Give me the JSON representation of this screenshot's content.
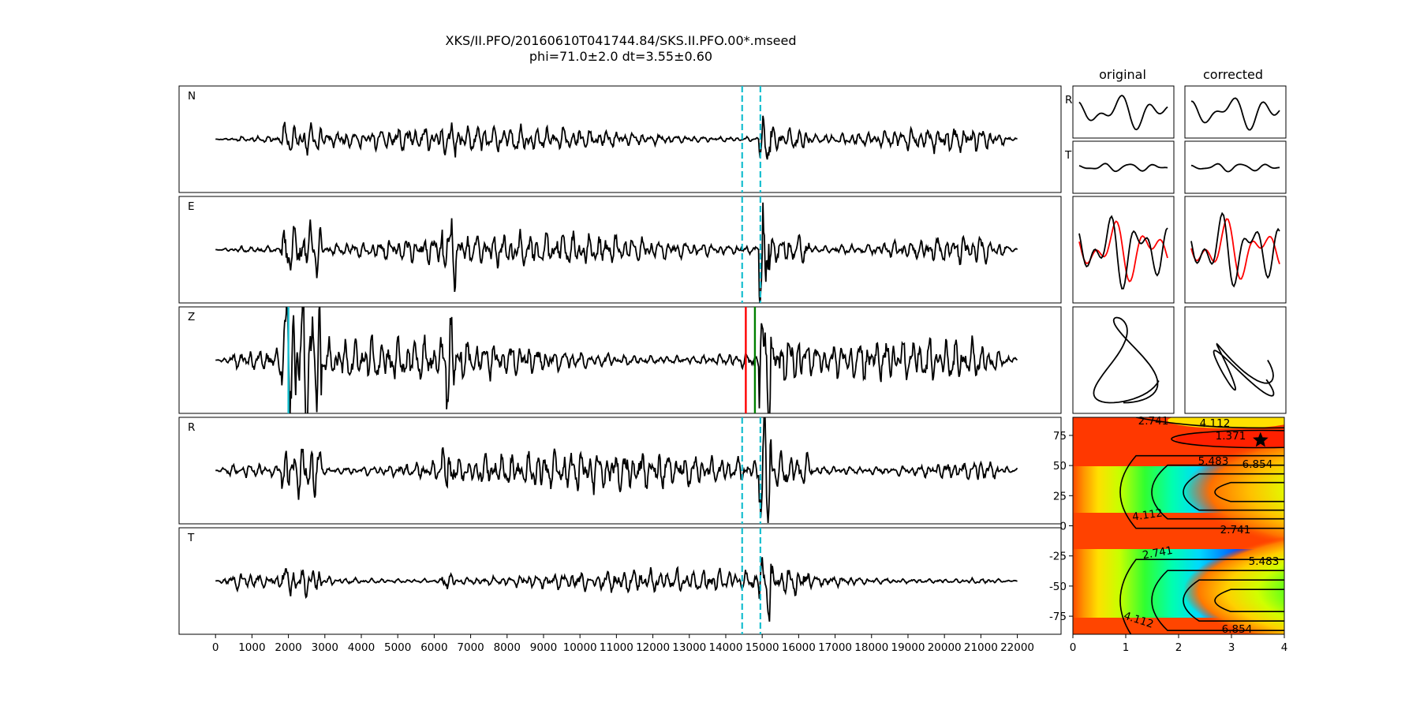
{
  "title": {
    "line1": "XKS/II.PFO/20160610T041744.84/SKS.II.PFO.00*.mseed",
    "line2": "phi=71.0±2.0 dt=3.55±0.60"
  },
  "colors": {
    "trace": "#000000",
    "window_marker": "#17becf",
    "pick_red": "#ff0000",
    "pick_green": "#008000",
    "pick_cyan": "#17becf",
    "particle_red": "#ff0000"
  },
  "chart_data": [
    {
      "type": "line",
      "name": "seismogram-panels",
      "channels": [
        "N",
        "E",
        "Z",
        "R",
        "T"
      ],
      "xlim": [
        -1000,
        23200
      ],
      "x_ticks": [
        0,
        1000,
        2000,
        3000,
        4000,
        5000,
        6000,
        7000,
        8000,
        9000,
        10000,
        11000,
        12000,
        13000,
        14000,
        15000,
        16000,
        17000,
        18000,
        19000,
        20000,
        21000,
        22000
      ],
      "x_ticklabels": [
        "0",
        "1000",
        "2000",
        "3000",
        "4000",
        "5000",
        "6000",
        "7000",
        "8000",
        "9000",
        "10000",
        "11000",
        "12000",
        "13000",
        "14000",
        "15000",
        "16000",
        "17000",
        "18000",
        "19000",
        "20000",
        "21000",
        "22000"
      ],
      "trace_x_range": [
        0,
        22000
      ],
      "window": {
        "start": 14450,
        "end": 14950,
        "style": "dashed",
        "panels": [
          "N",
          "E",
          "R",
          "T"
        ]
      },
      "z_picks": [
        {
          "x": 2000,
          "color": "cyan"
        },
        {
          "x": 14550,
          "color": "red"
        },
        {
          "x": 14800,
          "color": "green"
        }
      ]
    },
    {
      "type": "line",
      "name": "waveform-comparison",
      "columns": [
        "original",
        "corrected"
      ],
      "rows": [
        "R",
        "T"
      ]
    },
    {
      "type": "heatmap",
      "name": "error-surface",
      "xlim": [
        0,
        4
      ],
      "ylim": [
        -90,
        90
      ],
      "x_ticks": [
        0,
        1,
        2,
        3,
        4
      ],
      "y_ticks": [
        75,
        50,
        25,
        0,
        -25,
        -50,
        -75
      ],
      "contour_labels": [
        "1.371",
        "2.741",
        "4.112",
        "5.483",
        "6.854"
      ],
      "best": {
        "dt": 3.55,
        "phi": 71.0
      }
    }
  ]
}
